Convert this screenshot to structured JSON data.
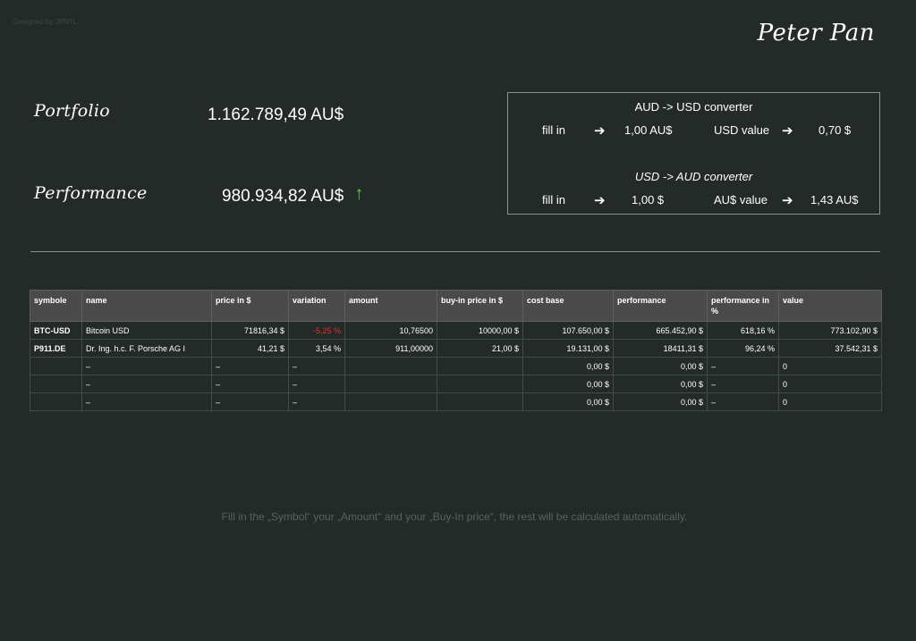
{
  "header": {
    "credit": "Designed by JPNTL",
    "user_name": "Peter Pan"
  },
  "summary": {
    "portfolio_label": "Portfolio",
    "portfolio_value": "1.162.789,49 AU$",
    "performance_label": "Performance",
    "performance_value": "980.934,82 AU$",
    "performance_trend_icon": "↑",
    "trend_color": "#59c94a"
  },
  "converter": {
    "aud_usd": {
      "title": "AUD -> USD converter",
      "fill_label": "fill in",
      "arrow": "➔",
      "input_value": "1,00 AU$",
      "result_label": "USD value",
      "result_value": "0,70 $"
    },
    "usd_aud": {
      "title": "USD -> AUD converter",
      "fill_label": "fill in",
      "arrow": "➔",
      "input_value": "1,00 $",
      "result_label": "AU$ value",
      "result_value": "1,43 AU$"
    }
  },
  "table": {
    "headers": [
      "symbole",
      "name",
      "price in $",
      "variation",
      "amount",
      "buy-in price in $",
      "cost base",
      "performance",
      "performance in %",
      "value"
    ],
    "rows": [
      {
        "symbol": "BTC-USD",
        "name": "Bitcoin USD",
        "price": "71816,34 $",
        "variation": "-5,25 %",
        "amount": "10,76500",
        "buy_in": "10000,00 $",
        "cost_base": "107.650,00 $",
        "performance": "665.452,90 $",
        "performance_pct": "618,16 %",
        "value": "773.102,90 $"
      },
      {
        "symbol": "P911.DE",
        "name": "Dr. Ing. h.c. F. Porsche AG   I",
        "price": "41,21 $",
        "variation": "3,54 %",
        "amount": "911,00000",
        "buy_in": "21,00 $",
        "cost_base": "19.131,00 $",
        "performance": "18411,31 $",
        "performance_pct": "96,24 %",
        "value": "37.542,31 $"
      },
      {
        "symbol": "",
        "name": "–",
        "price": "–",
        "variation": "–",
        "amount": "",
        "buy_in": "",
        "cost_base": "0,00 $",
        "performance": "0,00 $",
        "performance_pct": "–",
        "value": "0"
      },
      {
        "symbol": "",
        "name": "–",
        "price": "–",
        "variation": "–",
        "amount": "",
        "buy_in": "",
        "cost_base": "0,00 $",
        "performance": "0,00 $",
        "performance_pct": "–",
        "value": "0"
      },
      {
        "symbol": "",
        "name": "–",
        "price": "–",
        "variation": "–",
        "amount": "",
        "buy_in": "",
        "cost_base": "0,00 $",
        "performance": "0,00 $",
        "performance_pct": "–",
        "value": "0"
      }
    ]
  },
  "footer": {
    "note": "Fill in the „Symbol“ your „Amount“ and your „Buy-In price“, the rest will be calculated automatically."
  },
  "colors": {
    "background": "#232a27",
    "header_row": "#4a4a4a",
    "negative": "#e0352b",
    "positive": "#59c94a"
  }
}
